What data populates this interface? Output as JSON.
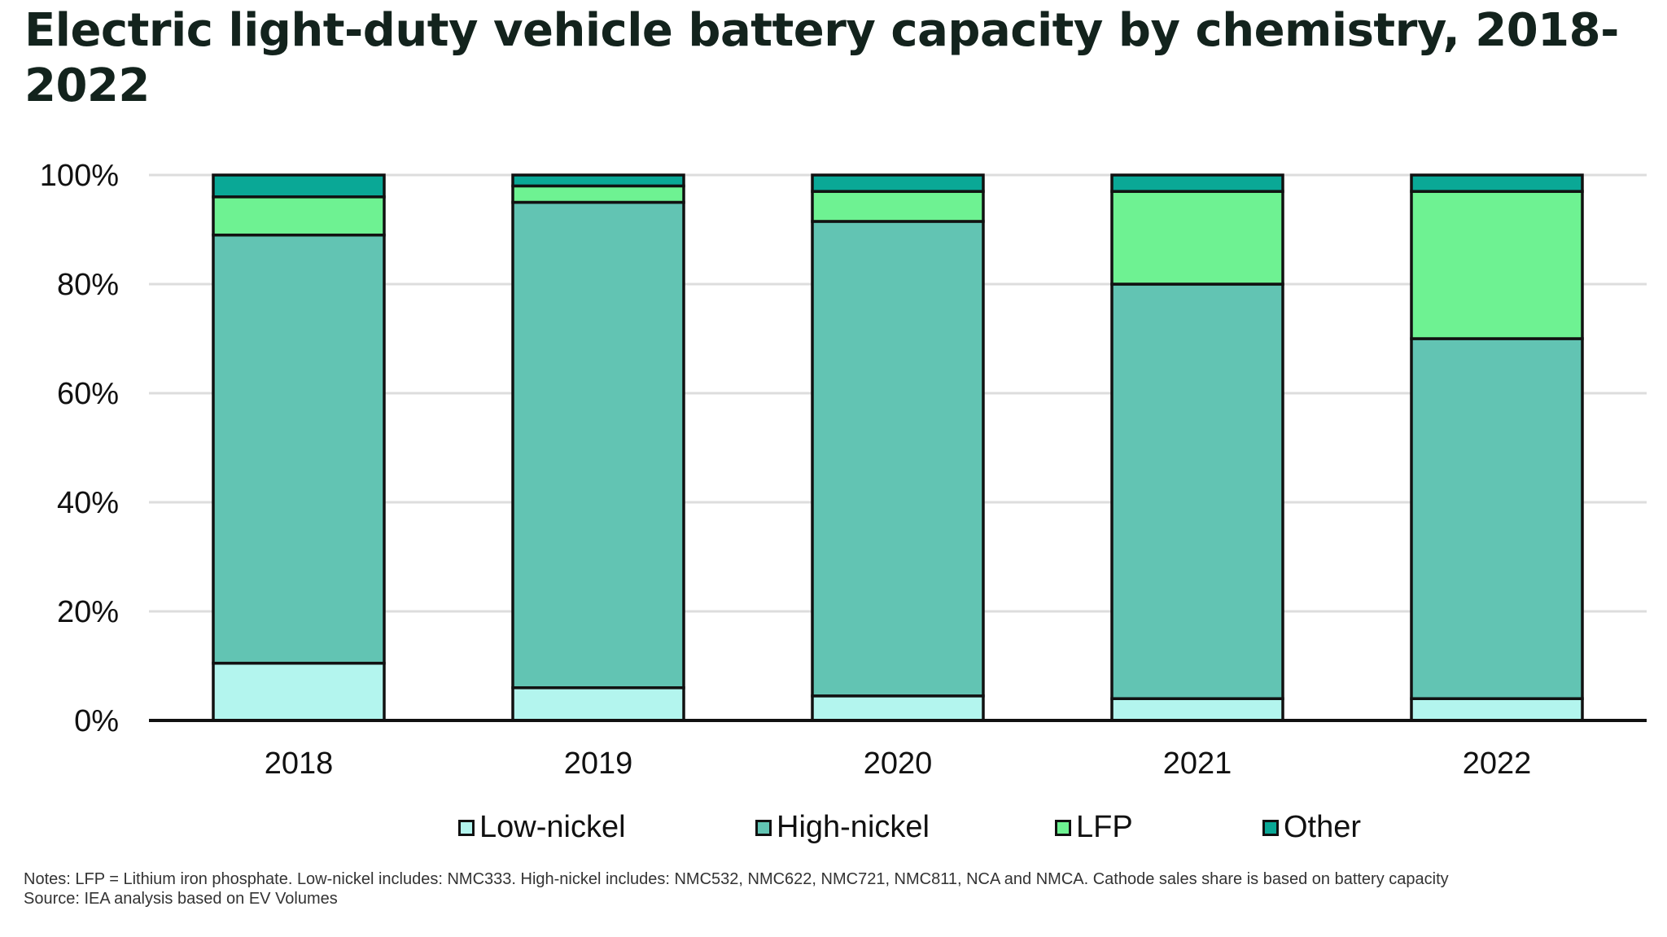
{
  "title": "Electric light-duty vehicle battery capacity by chemistry, 2018-2022",
  "chart_data": {
    "type": "bar",
    "stacked": true,
    "categories": [
      "2018",
      "2019",
      "2020",
      "2021",
      "2022"
    ],
    "series": [
      {
        "name": "Low-nickel",
        "color": "#b3f5ee",
        "values": [
          10.5,
          6,
          4.5,
          4,
          4
        ]
      },
      {
        "name": "High-nickel",
        "color": "#62c4b3",
        "values": [
          78.5,
          89,
          87,
          76,
          66
        ]
      },
      {
        "name": "LFP",
        "color": "#6ef292",
        "values": [
          7,
          3,
          5.5,
          17,
          27
        ]
      },
      {
        "name": "Other",
        "color": "#0aa896",
        "values": [
          4,
          2,
          3,
          3,
          3
        ]
      }
    ],
    "ylim": [
      0,
      100
    ],
    "yticks": [
      "0%",
      "20%",
      "40%",
      "60%",
      "80%",
      "100%"
    ],
    "grid": true,
    "legend": "bottom",
    "xlabel": "",
    "ylabel": ""
  },
  "notes": {
    "line1": "Notes: LFP = Lithium iron phosphate. Low-nickel includes: NMC333. High-nickel includes: NMC532, NMC622, NMC721, NMC811, NCA and NMCA. Cathode sales share is based on battery capacity",
    "line2": "Source: IEA analysis based on EV Volumes"
  }
}
